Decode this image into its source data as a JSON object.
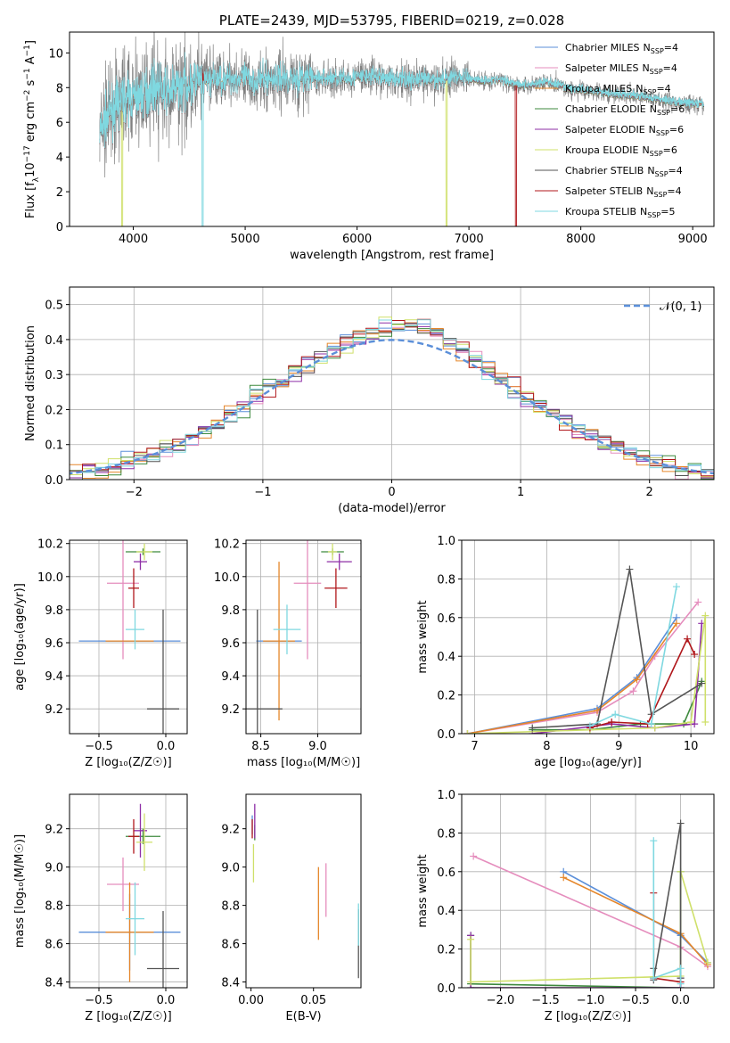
{
  "colors": {
    "Chabrier MILES": "#5b8fd9",
    "Salpeter MILES": "#e58dbd",
    "Kroupa MILES": "#e5862a",
    "Chabrier ELODIE": "#3e8a3e",
    "Salpeter ELODIE": "#8e2ea6",
    "Kroupa ELODIE": "#cfe06a",
    "Chabrier STELIB": "#555555",
    "Salpeter STELIB": "#b0171b",
    "Kroupa STELIB": "#7fd8e0",
    "data": "#808080",
    "gauss": "#5b8fd9"
  },
  "chart_data": [
    {
      "type": "line",
      "id": "spectrum",
      "title": "PLATE=2439, MJD=53795, FIBERID=0219, z=0.028",
      "xlabel": "wavelength [Angstrom, rest frame]",
      "ylabel": "Flux [f_λ10^{-17} erg cm^{-2} s^{-1} A^{-1}]",
      "xlim": [
        3430,
        9190
      ],
      "ylim": [
        0,
        11.2
      ],
      "xticks": [
        "4000",
        "5000",
        "6000",
        "7000",
        "8000",
        "9000"
      ],
      "yticks": [
        "0",
        "2",
        "4",
        "6",
        "8",
        "10"
      ],
      "grid": false,
      "legend_position": "top-right",
      "legend": [
        {
          "model": "Chabrier MILES",
          "nssp": "4"
        },
        {
          "model": "Salpeter MILES",
          "nssp": "4"
        },
        {
          "model": "Kroupa MILES",
          "nssp": "4"
        },
        {
          "model": "Chabrier ELODIE",
          "nssp": "6"
        },
        {
          "model": "Salpeter ELODIE",
          "nssp": "6"
        },
        {
          "model": "Kroupa ELODIE",
          "nssp": "6"
        },
        {
          "model": "Chabrier STELIB",
          "nssp": "4"
        },
        {
          "model": "Salpeter STELIB",
          "nssp": "4"
        },
        {
          "model": "Kroupa STELIB",
          "nssp": "5"
        }
      ],
      "nssp_prefix": "N",
      "nssp_sub": "SSP",
      "continuum": [
        [
          3700,
          5.4
        ],
        [
          3800,
          6.6
        ],
        [
          3900,
          7.3
        ],
        [
          4000,
          7.4
        ],
        [
          4100,
          7.6
        ],
        [
          4200,
          8.1
        ],
        [
          4300,
          7.7
        ],
        [
          4400,
          7.9
        ],
        [
          4500,
          8.2
        ],
        [
          4700,
          8.4
        ],
        [
          4900,
          8.5
        ],
        [
          5100,
          8.4
        ],
        [
          5300,
          8.5
        ],
        [
          5500,
          8.5
        ],
        [
          5700,
          8.5
        ],
        [
          5900,
          8.5
        ],
        [
          6100,
          8.6
        ],
        [
          6300,
          8.5
        ],
        [
          6500,
          8.4
        ],
        [
          6700,
          8.4
        ],
        [
          6900,
          8.6
        ],
        [
          7100,
          8.4
        ],
        [
          7300,
          8.4
        ],
        [
          7500,
          8.1
        ],
        [
          7700,
          8.3
        ],
        [
          7900,
          7.9
        ],
        [
          8100,
          7.8
        ],
        [
          8300,
          7.6
        ],
        [
          8500,
          7.5
        ],
        [
          8700,
          7.3
        ],
        [
          8900,
          7.1
        ],
        [
          9100,
          7.0
        ]
      ],
      "dropouts": [
        {
          "model": "Kroupa ELODIE",
          "x": 3900
        },
        {
          "model": "Kroupa STELIB",
          "x": 4620
        },
        {
          "model": "Kroupa ELODIE",
          "x": 6800
        },
        {
          "model": "Salpeter STELIB",
          "x": 7420
        }
      ]
    },
    {
      "type": "histogram",
      "id": "residuals",
      "xlabel": "(data-model)/error",
      "ylabel": "Normed distribution",
      "xlim": [
        -2.5,
        2.5
      ],
      "ylim": [
        0,
        0.55
      ],
      "xticks": [
        "−2",
        "−1",
        "0",
        "1",
        "2"
      ],
      "yticks": [
        "0.0",
        "0.1",
        "0.2",
        "0.3",
        "0.4",
        "0.5"
      ],
      "grid": true,
      "legend_position": "top-right",
      "legend": [
        {
          "label": "𝒩(0, 1)"
        }
      ],
      "bin_width": 0.1,
      "reference_curve": "gaussian(0, 1)"
    },
    {
      "type": "scatter",
      "id": "age_vs_Z",
      "xlabel": "Z [log₁₀(Z/Z☉)]",
      "ylabel": "age  [log₁₀(age/yr)]",
      "xlim": [
        -0.72,
        0.16
      ],
      "ylim": [
        9.05,
        10.22
      ],
      "xticks": [
        "−0.5",
        "0.0"
      ],
      "yticks": [
        "9.2",
        "9.4",
        "9.6",
        "9.8",
        "10.0",
        "10.2"
      ],
      "grid": true,
      "points": [
        {
          "model": "Chabrier MILES",
          "x": -0.27,
          "y": 9.61,
          "xerr": 0.38,
          "yerr": 0.0
        },
        {
          "model": "Salpeter MILES",
          "x": -0.32,
          "y": 9.96,
          "xerr": 0.12,
          "yerr": 0.46
        },
        {
          "model": "Kroupa MILES",
          "x": -0.27,
          "y": 9.61,
          "xerr": 0.18,
          "yerr": 0.0
        },
        {
          "model": "Chabrier ELODIE",
          "x": -0.17,
          "y": 10.15,
          "xerr": 0.13,
          "yerr": 0.02
        },
        {
          "model": "Salpeter ELODIE",
          "x": -0.19,
          "y": 10.09,
          "xerr": 0.05,
          "yerr": 0.05
        },
        {
          "model": "Kroupa ELODIE",
          "x": -0.16,
          "y": 10.15,
          "xerr": 0.06,
          "yerr": 0.05
        },
        {
          "model": "Chabrier STELIB",
          "x": -0.02,
          "y": 9.2,
          "xerr": 0.12,
          "yerr": 0.6
        },
        {
          "model": "Salpeter STELIB",
          "x": -0.24,
          "y": 9.93,
          "xerr": 0.04,
          "yerr": 0.12
        },
        {
          "model": "Kroupa STELIB",
          "x": -0.23,
          "y": 9.68,
          "xerr": 0.07,
          "yerr": 0.12
        }
      ]
    },
    {
      "type": "scatter",
      "id": "age_vs_mass",
      "xlabel": "mass [log₁₀(M/M☉)]",
      "ylabel": "",
      "xlim": [
        8.37,
        9.38
      ],
      "ylim": [
        9.05,
        10.22
      ],
      "xticks": [
        "8.5",
        "9.0"
      ],
      "yticks": [
        "9.2",
        "9.4",
        "9.6",
        "9.8",
        "10.0",
        "10.2"
      ],
      "grid": true,
      "points": [
        {
          "model": "Chabrier MILES",
          "x": 8.66,
          "y": 9.61,
          "xerr": 0.2,
          "yerr": 0.0
        },
        {
          "model": "Salpeter MILES",
          "x": 8.91,
          "y": 9.96,
          "xerr": 0.12,
          "yerr": 0.46
        },
        {
          "model": "Kroupa MILES",
          "x": 8.66,
          "y": 9.61,
          "xerr": 0.14,
          "yerr": 0.48
        },
        {
          "model": "Chabrier ELODIE",
          "x": 9.13,
          "y": 10.15,
          "xerr": 0.1,
          "yerr": 0.02
        },
        {
          "model": "Salpeter ELODIE",
          "x": 9.19,
          "y": 10.09,
          "xerr": 0.11,
          "yerr": 0.05
        },
        {
          "model": "Kroupa ELODIE",
          "x": 9.13,
          "y": 10.15,
          "xerr": 0.04,
          "yerr": 0.05
        },
        {
          "model": "Chabrier STELIB",
          "x": 8.47,
          "y": 9.2,
          "xerr": 0.22,
          "yerr": 0.6
        },
        {
          "model": "Salpeter STELIB",
          "x": 9.16,
          "y": 9.93,
          "xerr": 0.1,
          "yerr": 0.12
        },
        {
          "model": "Kroupa STELIB",
          "x": 8.73,
          "y": 9.68,
          "xerr": 0.12,
          "yerr": 0.15
        }
      ]
    },
    {
      "type": "line",
      "id": "weight_vs_age",
      "xlabel": "age  [log₁₀(age/yr)]",
      "ylabel": "mass weight",
      "xlim": [
        6.82,
        10.32
      ],
      "ylim": [
        0,
        1.0
      ],
      "xticks": [
        "7",
        "8",
        "9",
        "10"
      ],
      "yticks": [
        "0.0",
        "0.2",
        "0.4",
        "0.6",
        "0.8",
        "1.0"
      ],
      "grid": true,
      "series": [
        {
          "model": "Chabrier MILES",
          "x": [
            6.9,
            8.7,
            9.25,
            9.8
          ],
          "y": [
            0.0,
            0.13,
            0.29,
            0.6
          ]
        },
        {
          "model": "Salpeter MILES",
          "x": [
            6.9,
            8.7,
            9.2,
            9.5,
            10.1
          ],
          "y": [
            0.0,
            0.11,
            0.22,
            0.4,
            0.68
          ]
        },
        {
          "model": "Kroupa MILES",
          "x": [
            6.9,
            8.7,
            9.25,
            9.8
          ],
          "y": [
            0.0,
            0.12,
            0.28,
            0.57
          ]
        },
        {
          "model": "Chabrier ELODIE",
          "x": [
            7.8,
            8.6,
            9.3,
            9.9,
            10.15
          ],
          "y": [
            0.02,
            0.02,
            0.05,
            0.05,
            0.27
          ]
        },
        {
          "model": "Salpeter ELODIE",
          "x": [
            7.8,
            8.9,
            9.5,
            10.05,
            10.15
          ],
          "y": [
            0.0,
            0.05,
            0.03,
            0.05,
            0.57
          ]
        },
        {
          "model": "Kroupa ELODIE",
          "x": [
            6.9,
            8.6,
            9.5,
            10.0,
            10.2,
            10.2
          ],
          "y": [
            0.0,
            0.02,
            0.03,
            0.06,
            0.61,
            0.06
          ]
        },
        {
          "model": "Chabrier STELIB",
          "x": [
            7.8,
            8.7,
            9.15,
            9.45,
            10.15
          ],
          "y": [
            0.03,
            0.05,
            0.85,
            0.1,
            0.26
          ]
        },
        {
          "model": "Salpeter STELIB",
          "x": [
            8.6,
            8.9,
            9.4,
            9.95,
            10.05
          ],
          "y": [
            0.03,
            0.06,
            0.05,
            0.49,
            0.41
          ]
        },
        {
          "model": "Kroupa STELIB",
          "x": [
            8.6,
            8.95,
            9.45,
            9.8
          ],
          "y": [
            0.04,
            0.1,
            0.05,
            0.76
          ]
        }
      ]
    },
    {
      "type": "scatter",
      "id": "mass_vs_Z",
      "xlabel": "Z [log₁₀(Z/Z☉)]",
      "ylabel": "mass [log₁₀(M/M☉)]",
      "xlim": [
        -0.72,
        0.16
      ],
      "ylim": [
        8.37,
        9.38
      ],
      "xticks": [
        "−0.5",
        "0.0"
      ],
      "yticks": [
        "8.4",
        "8.6",
        "8.8",
        "9.0",
        "9.2"
      ],
      "grid": true,
      "points": [
        {
          "model": "Chabrier MILES",
          "x": -0.27,
          "y": 8.66,
          "xerr": 0.38,
          "yerr": 0.2
        },
        {
          "model": "Salpeter MILES",
          "x": -0.32,
          "y": 8.91,
          "xerr": 0.12,
          "yerr": 0.14
        },
        {
          "model": "Kroupa MILES",
          "x": -0.27,
          "y": 8.66,
          "xerr": 0.18,
          "yerr": 0.26
        },
        {
          "model": "Chabrier ELODIE",
          "x": -0.17,
          "y": 9.16,
          "xerr": 0.13,
          "yerr": 0.04
        },
        {
          "model": "Salpeter ELODIE",
          "x": -0.19,
          "y": 9.19,
          "xerr": 0.05,
          "yerr": 0.14
        },
        {
          "model": "Kroupa ELODIE",
          "x": -0.16,
          "y": 9.13,
          "xerr": 0.06,
          "yerr": 0.15
        },
        {
          "model": "Chabrier STELIB",
          "x": -0.02,
          "y": 8.47,
          "xerr": 0.12,
          "yerr": 0.3
        },
        {
          "model": "Salpeter STELIB",
          "x": -0.24,
          "y": 9.16,
          "xerr": 0.04,
          "yerr": 0.09
        },
        {
          "model": "Kroupa STELIB",
          "x": -0.23,
          "y": 8.73,
          "xerr": 0.07,
          "yerr": 0.19
        }
      ]
    },
    {
      "type": "scatter",
      "id": "mass_vs_ebv",
      "xlabel": "E(B-V)",
      "ylabel": "",
      "xlim": [
        -0.004,
        0.088
      ],
      "ylim": [
        8.37,
        9.38
      ],
      "xticks": [
        "0.00",
        "0.05"
      ],
      "yticks": [
        "8.4",
        "8.6",
        "8.8",
        "9.0",
        "9.2"
      ],
      "grid": false,
      "points": [
        {
          "model": "Chabrier MILES",
          "x": 0.001,
          "y": 9.22,
          "xerr": 0,
          "yerr": 0.05
        },
        {
          "model": "Salpeter MILES",
          "x": 0.06,
          "y": 8.88,
          "xerr": 0,
          "yerr": 0.14
        },
        {
          "model": "Kroupa MILES",
          "x": 0.054,
          "y": 8.81,
          "xerr": 0,
          "yerr": 0.19
        },
        {
          "model": "Chabrier ELODIE",
          "x": 0.003,
          "y": 9.18,
          "xerr": 0,
          "yerr": 0.04
        },
        {
          "model": "Salpeter ELODIE",
          "x": 0.003,
          "y": 9.24,
          "xerr": 0,
          "yerr": 0.09
        },
        {
          "model": "Kroupa ELODIE",
          "x": 0.002,
          "y": 9.02,
          "xerr": 0,
          "yerr": 0.1
        },
        {
          "model": "Chabrier STELIB",
          "x": 0.086,
          "y": 8.6,
          "xerr": 0,
          "yerr": 0.18
        },
        {
          "model": "Salpeter STELIB",
          "x": 0.001,
          "y": 9.2,
          "xerr": 0,
          "yerr": 0.05
        },
        {
          "model": "Kroupa STELIB",
          "x": 0.086,
          "y": 8.7,
          "xerr": 0,
          "yerr": 0.11
        }
      ]
    },
    {
      "type": "line",
      "id": "weight_vs_Z",
      "xlabel": "Z [log₁₀(Z/Z☉)]",
      "ylabel": "mass weight",
      "xlim": [
        -2.43,
        0.37
      ],
      "ylim": [
        0,
        1.0
      ],
      "xticks": [
        "−2.0",
        "−1.5",
        "−1.0",
        "−0.5",
        "0.0"
      ],
      "yticks": [
        "0.0",
        "0.2",
        "0.4",
        "0.6",
        "0.8",
        "1.0"
      ],
      "grid": true,
      "series": [
        {
          "model": "Chabrier MILES",
          "x": [
            -1.3,
            0.0,
            0.3
          ],
          "y": [
            0.6,
            0.27,
            0.13
          ]
        },
        {
          "model": "Salpeter MILES",
          "x": [
            -2.3,
            0.0,
            0.3
          ],
          "y": [
            0.68,
            0.21,
            0.11
          ]
        },
        {
          "model": "Kroupa MILES",
          "x": [
            -1.3,
            0.0,
            0.3
          ],
          "y": [
            0.57,
            0.28,
            0.12
          ]
        },
        {
          "model": "Chabrier ELODIE",
          "x": [
            -2.33,
            -2.33,
            0.0,
            0.0
          ],
          "y": [
            0.27,
            0.02,
            0.0,
            0.6
          ]
        },
        {
          "model": "Salpeter ELODIE",
          "x": [
            -2.33,
            -2.33,
            0.0,
            0.0
          ],
          "y": [
            0.27,
            0.0,
            0.0,
            0.05
          ]
        },
        {
          "model": "Kroupa ELODIE",
          "x": [
            -2.33,
            -2.33,
            0.0,
            0.0,
            0.3
          ],
          "y": [
            0.25,
            0.03,
            0.06,
            0.6,
            0.13
          ]
        },
        {
          "model": "Chabrier STELIB",
          "x": [
            -0.3,
            -0.3,
            0.0,
            0.0
          ],
          "y": [
            0.1,
            0.04,
            0.85,
            0.05
          ]
        },
        {
          "model": "Salpeter STELIB",
          "x": [
            -0.3,
            -0.3,
            0.0
          ],
          "y": [
            0.49,
            0.05,
            0.03
          ]
        },
        {
          "model": "Kroupa STELIB",
          "x": [
            -0.3,
            -0.3,
            0.0,
            0.0
          ],
          "y": [
            0.76,
            0.05,
            0.1,
            0.02
          ]
        }
      ]
    }
  ]
}
